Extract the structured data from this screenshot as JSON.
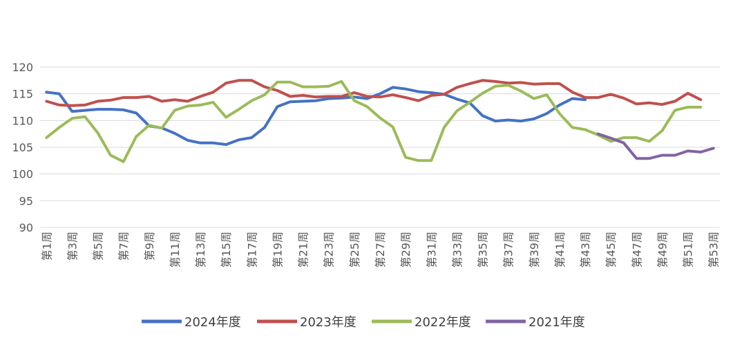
{
  "chart_data": {
    "type": "line",
    "title": "",
    "xlabel": "",
    "ylabel": "",
    "ylim": [
      90,
      120
    ],
    "yticks": [
      90,
      95,
      100,
      105,
      110,
      115,
      120
    ],
    "grid": "horizontal",
    "legend_position": "bottom",
    "tick_labels": [
      "第1周",
      "第3周",
      "第5周",
      "第7周",
      "第9周",
      "第11周",
      "第13周",
      "第15周",
      "第17周",
      "第19周",
      "第21周",
      "第23周",
      "第25周",
      "第27周",
      "第29周",
      "第31周",
      "第33周",
      "第35周",
      "第37周",
      "第39周",
      "第41周",
      "第43周",
      "第45周",
      "第47周",
      "第49周",
      "第51周",
      "第53周"
    ],
    "tick_weeks": [
      1,
      3,
      5,
      7,
      9,
      11,
      13,
      15,
      17,
      19,
      21,
      23,
      25,
      27,
      29,
      31,
      33,
      35,
      37,
      39,
      41,
      43,
      45,
      47,
      49,
      51,
      53
    ],
    "series": [
      {
        "name": "2024年度",
        "color": "#4472C4",
        "x": [
          1,
          2,
          3,
          4,
          5,
          6,
          7,
          8,
          9,
          10,
          11,
          12,
          13,
          14,
          15,
          16,
          17,
          18,
          19,
          20,
          21,
          22,
          23,
          24,
          25,
          26,
          27,
          28,
          29,
          30,
          31,
          32,
          33,
          34,
          35,
          36,
          37,
          38,
          39,
          40,
          41,
          42,
          43
        ],
        "y": [
          115.3,
          115.0,
          111.7,
          111.9,
          112.1,
          112.1,
          112.0,
          111.4,
          109.0,
          108.6,
          107.6,
          106.3,
          105.8,
          105.8,
          105.5,
          106.4,
          106.8,
          108.7,
          112.6,
          113.5,
          113.6,
          113.7,
          114.1,
          114.2,
          114.4,
          114.1,
          115.0,
          116.2,
          115.9,
          115.4,
          115.2,
          114.9,
          114.0,
          113.3,
          110.9,
          109.9,
          110.1,
          109.9,
          110.3,
          111.3,
          112.9,
          114.1,
          113.9
        ]
      },
      {
        "name": "2023年度",
        "color": "#C0504D",
        "x": [
          1,
          2,
          3,
          4,
          5,
          6,
          7,
          8,
          9,
          10,
          11,
          12,
          13,
          14,
          15,
          16,
          17,
          18,
          19,
          20,
          21,
          22,
          23,
          24,
          25,
          26,
          27,
          28,
          29,
          30,
          31,
          32,
          33,
          34,
          35,
          36,
          37,
          38,
          39,
          40,
          41,
          42,
          43,
          44,
          45,
          46,
          47,
          48,
          49,
          50,
          51,
          52
        ],
        "y": [
          113.6,
          112.9,
          112.8,
          112.9,
          113.6,
          113.8,
          114.3,
          114.3,
          114.5,
          113.6,
          113.9,
          113.6,
          114.5,
          115.3,
          117.0,
          117.5,
          117.5,
          116.3,
          115.6,
          114.5,
          114.7,
          114.4,
          114.5,
          114.5,
          115.2,
          114.5,
          114.4,
          114.8,
          114.3,
          113.7,
          114.7,
          114.9,
          116.2,
          116.9,
          117.5,
          117.3,
          117.0,
          117.1,
          116.8,
          116.9,
          116.9,
          115.3,
          114.3,
          114.3,
          114.9,
          114.2,
          113.1,
          113.3,
          113.0,
          113.6,
          115.1,
          113.9
        ]
      },
      {
        "name": "2022年度",
        "color": "#9BBB59",
        "x": [
          1,
          2,
          3,
          4,
          5,
          6,
          7,
          8,
          9,
          10,
          11,
          12,
          13,
          14,
          15,
          16,
          17,
          18,
          19,
          20,
          21,
          22,
          23,
          24,
          25,
          26,
          27,
          28,
          29,
          30,
          31,
          32,
          33,
          34,
          35,
          36,
          37,
          38,
          39,
          40,
          41,
          42,
          43,
          44,
          45,
          46,
          47,
          48,
          49,
          50,
          51,
          52
        ],
        "y": [
          106.8,
          108.7,
          110.4,
          110.7,
          107.7,
          103.5,
          102.3,
          107.0,
          109.1,
          108.6,
          111.9,
          112.7,
          112.9,
          113.4,
          110.6,
          112.1,
          113.7,
          114.8,
          117.2,
          117.2,
          116.3,
          116.3,
          116.4,
          117.3,
          113.7,
          112.6,
          110.5,
          108.8,
          103.1,
          102.5,
          102.5,
          108.7,
          111.8,
          113.4,
          115.1,
          116.4,
          116.6,
          115.5,
          114.1,
          114.8,
          111.3,
          108.7,
          108.3,
          107.3,
          106.1,
          106.8,
          106.8,
          106.1,
          108.1,
          111.9,
          112.5,
          112.5
        ]
      },
      {
        "name": "2021年度",
        "color": "#8064A2",
        "x": [
          44,
          45,
          46,
          47,
          48,
          49,
          50,
          51,
          52,
          53
        ],
        "y": [
          107.5,
          106.7,
          105.8,
          102.9,
          102.9,
          103.5,
          103.5,
          104.3,
          104.1,
          104.8
        ]
      }
    ]
  }
}
